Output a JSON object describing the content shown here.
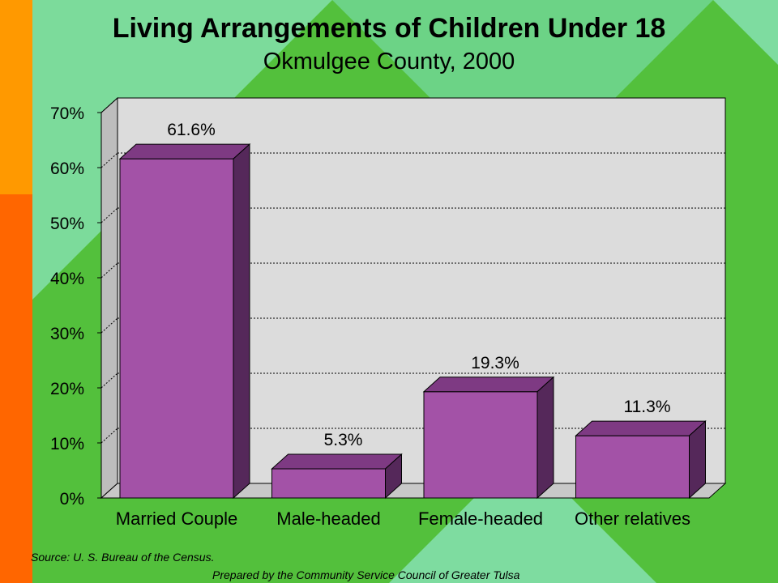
{
  "slide": {
    "title": "Living Arrangements of Children Under 18",
    "subtitle": "Okmulgee County, 2000",
    "source": "Source:  U. S. Bureau of the Census.",
    "prepared_by": "Prepared by the Community Service Council of Greater Tulsa"
  },
  "colors": {
    "bar_front": "#A352A7",
    "bar_top": "#7E3A83",
    "bar_side": "#55285A",
    "plot_back": "#DCDCDC",
    "background_green": "#53C03C",
    "diamond_green": "#7EDCA0",
    "orange_upper": "#FF9900",
    "orange_lower": "#FF6600"
  },
  "chart_data": {
    "type": "bar",
    "title": "Living Arrangements of Children Under 18",
    "subtitle": "Okmulgee County, 2000",
    "categories": [
      "Married Couple",
      "Male-headed",
      "Female-headed",
      "Other relatives"
    ],
    "values": [
      61.6,
      5.3,
      19.3,
      11.3
    ],
    "data_labels": [
      "61.6%",
      "5.3%",
      "19.3%",
      "11.3%"
    ],
    "y_ticks": [
      "0%",
      "10%",
      "20%",
      "30%",
      "40%",
      "50%",
      "60%",
      "70%"
    ],
    "ylim": [
      0,
      70
    ],
    "grid": true,
    "three_d": true,
    "legend": "none"
  }
}
